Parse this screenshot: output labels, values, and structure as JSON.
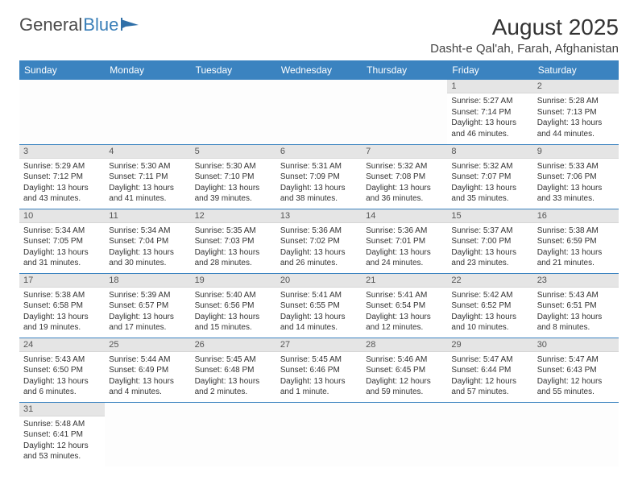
{
  "logo": {
    "general": "General",
    "blue": "Blue"
  },
  "header": {
    "month_title": "August 2025",
    "location": "Dasht-e Qal'ah, Farah, Afghanistan"
  },
  "weekdays": [
    "Sunday",
    "Monday",
    "Tuesday",
    "Wednesday",
    "Thursday",
    "Friday",
    "Saturday"
  ],
  "colors": {
    "accent": "#3b83c0",
    "daynum_bg": "#e5e5e5",
    "text": "#333333"
  },
  "days": [
    {
      "n": "1",
      "sr": "Sunrise: 5:27 AM",
      "ss": "Sunset: 7:14 PM",
      "d1": "Daylight: 13 hours",
      "d2": "and 46 minutes."
    },
    {
      "n": "2",
      "sr": "Sunrise: 5:28 AM",
      "ss": "Sunset: 7:13 PM",
      "d1": "Daylight: 13 hours",
      "d2": "and 44 minutes."
    },
    {
      "n": "3",
      "sr": "Sunrise: 5:29 AM",
      "ss": "Sunset: 7:12 PM",
      "d1": "Daylight: 13 hours",
      "d2": "and 43 minutes."
    },
    {
      "n": "4",
      "sr": "Sunrise: 5:30 AM",
      "ss": "Sunset: 7:11 PM",
      "d1": "Daylight: 13 hours",
      "d2": "and 41 minutes."
    },
    {
      "n": "5",
      "sr": "Sunrise: 5:30 AM",
      "ss": "Sunset: 7:10 PM",
      "d1": "Daylight: 13 hours",
      "d2": "and 39 minutes."
    },
    {
      "n": "6",
      "sr": "Sunrise: 5:31 AM",
      "ss": "Sunset: 7:09 PM",
      "d1": "Daylight: 13 hours",
      "d2": "and 38 minutes."
    },
    {
      "n": "7",
      "sr": "Sunrise: 5:32 AM",
      "ss": "Sunset: 7:08 PM",
      "d1": "Daylight: 13 hours",
      "d2": "and 36 minutes."
    },
    {
      "n": "8",
      "sr": "Sunrise: 5:32 AM",
      "ss": "Sunset: 7:07 PM",
      "d1": "Daylight: 13 hours",
      "d2": "and 35 minutes."
    },
    {
      "n": "9",
      "sr": "Sunrise: 5:33 AM",
      "ss": "Sunset: 7:06 PM",
      "d1": "Daylight: 13 hours",
      "d2": "and 33 minutes."
    },
    {
      "n": "10",
      "sr": "Sunrise: 5:34 AM",
      "ss": "Sunset: 7:05 PM",
      "d1": "Daylight: 13 hours",
      "d2": "and 31 minutes."
    },
    {
      "n": "11",
      "sr": "Sunrise: 5:34 AM",
      "ss": "Sunset: 7:04 PM",
      "d1": "Daylight: 13 hours",
      "d2": "and 30 minutes."
    },
    {
      "n": "12",
      "sr": "Sunrise: 5:35 AM",
      "ss": "Sunset: 7:03 PM",
      "d1": "Daylight: 13 hours",
      "d2": "and 28 minutes."
    },
    {
      "n": "13",
      "sr": "Sunrise: 5:36 AM",
      "ss": "Sunset: 7:02 PM",
      "d1": "Daylight: 13 hours",
      "d2": "and 26 minutes."
    },
    {
      "n": "14",
      "sr": "Sunrise: 5:36 AM",
      "ss": "Sunset: 7:01 PM",
      "d1": "Daylight: 13 hours",
      "d2": "and 24 minutes."
    },
    {
      "n": "15",
      "sr": "Sunrise: 5:37 AM",
      "ss": "Sunset: 7:00 PM",
      "d1": "Daylight: 13 hours",
      "d2": "and 23 minutes."
    },
    {
      "n": "16",
      "sr": "Sunrise: 5:38 AM",
      "ss": "Sunset: 6:59 PM",
      "d1": "Daylight: 13 hours",
      "d2": "and 21 minutes."
    },
    {
      "n": "17",
      "sr": "Sunrise: 5:38 AM",
      "ss": "Sunset: 6:58 PM",
      "d1": "Daylight: 13 hours",
      "d2": "and 19 minutes."
    },
    {
      "n": "18",
      "sr": "Sunrise: 5:39 AM",
      "ss": "Sunset: 6:57 PM",
      "d1": "Daylight: 13 hours",
      "d2": "and 17 minutes."
    },
    {
      "n": "19",
      "sr": "Sunrise: 5:40 AM",
      "ss": "Sunset: 6:56 PM",
      "d1": "Daylight: 13 hours",
      "d2": "and 15 minutes."
    },
    {
      "n": "20",
      "sr": "Sunrise: 5:41 AM",
      "ss": "Sunset: 6:55 PM",
      "d1": "Daylight: 13 hours",
      "d2": "and 14 minutes."
    },
    {
      "n": "21",
      "sr": "Sunrise: 5:41 AM",
      "ss": "Sunset: 6:54 PM",
      "d1": "Daylight: 13 hours",
      "d2": "and 12 minutes."
    },
    {
      "n": "22",
      "sr": "Sunrise: 5:42 AM",
      "ss": "Sunset: 6:52 PM",
      "d1": "Daylight: 13 hours",
      "d2": "and 10 minutes."
    },
    {
      "n": "23",
      "sr": "Sunrise: 5:43 AM",
      "ss": "Sunset: 6:51 PM",
      "d1": "Daylight: 13 hours",
      "d2": "and 8 minutes."
    },
    {
      "n": "24",
      "sr": "Sunrise: 5:43 AM",
      "ss": "Sunset: 6:50 PM",
      "d1": "Daylight: 13 hours",
      "d2": "and 6 minutes."
    },
    {
      "n": "25",
      "sr": "Sunrise: 5:44 AM",
      "ss": "Sunset: 6:49 PM",
      "d1": "Daylight: 13 hours",
      "d2": "and 4 minutes."
    },
    {
      "n": "26",
      "sr": "Sunrise: 5:45 AM",
      "ss": "Sunset: 6:48 PM",
      "d1": "Daylight: 13 hours",
      "d2": "and 2 minutes."
    },
    {
      "n": "27",
      "sr": "Sunrise: 5:45 AM",
      "ss": "Sunset: 6:46 PM",
      "d1": "Daylight: 13 hours",
      "d2": "and 1 minute."
    },
    {
      "n": "28",
      "sr": "Sunrise: 5:46 AM",
      "ss": "Sunset: 6:45 PM",
      "d1": "Daylight: 12 hours",
      "d2": "and 59 minutes."
    },
    {
      "n": "29",
      "sr": "Sunrise: 5:47 AM",
      "ss": "Sunset: 6:44 PM",
      "d1": "Daylight: 12 hours",
      "d2": "and 57 minutes."
    },
    {
      "n": "30",
      "sr": "Sunrise: 5:47 AM",
      "ss": "Sunset: 6:43 PM",
      "d1": "Daylight: 12 hours",
      "d2": "and 55 minutes."
    },
    {
      "n": "31",
      "sr": "Sunrise: 5:48 AM",
      "ss": "Sunset: 6:41 PM",
      "d1": "Daylight: 12 hours",
      "d2": "and 53 minutes."
    }
  ]
}
